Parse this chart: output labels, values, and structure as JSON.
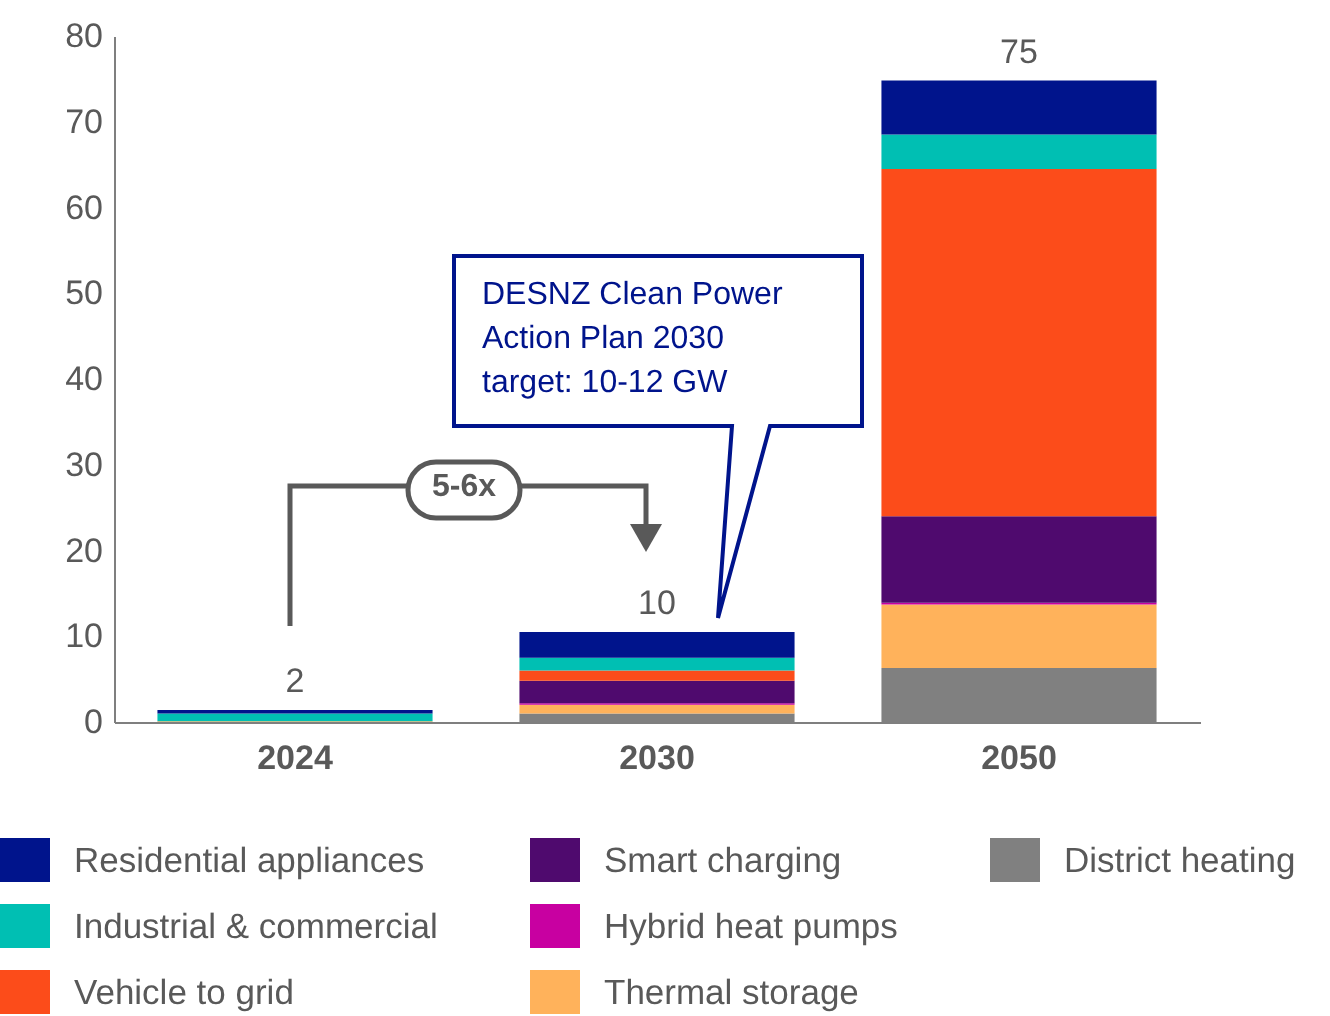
{
  "chart_data": {
    "type": "bar",
    "stacked": true,
    "categories": [
      "2024",
      "2030",
      "2050"
    ],
    "series": [
      {
        "name": "District heating",
        "color": "#808080",
        "values": [
          null,
          1.0,
          6.3
        ]
      },
      {
        "name": "Thermal storage",
        "color": "#ffb25b",
        "values": [
          0.1,
          1.0,
          7.4
        ]
      },
      {
        "name": "Hybrid heat pumps",
        "color": "#c800a1",
        "values": [
          0,
          0.2,
          0.2
        ]
      },
      {
        "name": "Smart charging",
        "color": "#4f0a6e",
        "values": [
          0,
          2.6,
          10.1
        ]
      },
      {
        "name": "Vehicle to grid",
        "color": "#fc4c1a",
        "values": [
          0,
          1.2,
          40.5
        ]
      },
      {
        "name": "Industrial & commercial",
        "color": "#00bfb3",
        "values": [
          0.9,
          1.5,
          4.0
        ]
      },
      {
        "name": "Residential appliances",
        "color": "#00148c",
        "values": [
          0.4,
          3.0,
          6.3
        ]
      }
    ],
    "totals": [
      "2",
      "10",
      "75"
    ],
    "ylim": [
      0,
      80
    ],
    "yticks": [
      0,
      10,
      20,
      30,
      40,
      50,
      60,
      70,
      80
    ],
    "grid": false,
    "legend": "bottom",
    "annotations": [
      "DESNZ Clean Power Action Plan 2030 target: 10-12 GW",
      "5-6x"
    ]
  }
}
